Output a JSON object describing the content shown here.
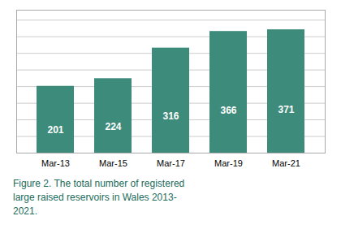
{
  "chart_data": {
    "type": "bar",
    "caption": "Figure 2. The total number of registered\nlarge raised reservoirs in Wales 2013-\n2021.",
    "categories": [
      "Mar-13",
      "Mar-15",
      "Mar-17",
      "Mar-19",
      "Mar-21"
    ],
    "values": [
      201,
      224,
      316,
      366,
      371
    ],
    "color": "#3d8b7a",
    "ylim": [
      0,
      430
    ],
    "yticks": [
      0,
      50,
      100,
      150,
      200,
      250,
      300,
      350,
      400
    ],
    "grid": true,
    "data_labels": true,
    "tick_labels": "x"
  }
}
